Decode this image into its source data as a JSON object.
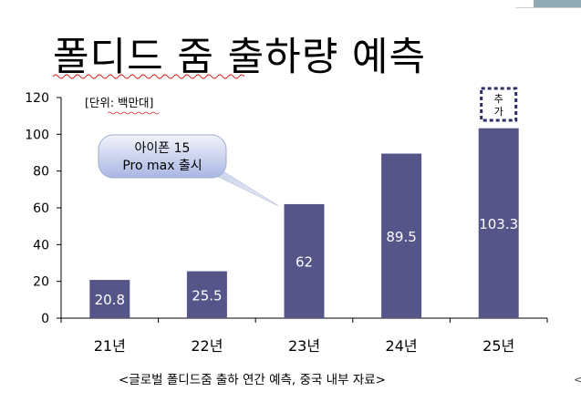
{
  "slide": {
    "title": "폴디드 줌 출하량 예측",
    "caption": "<글로벌 폴디드줌 출하 연간 예측, 중국 내부 자료>"
  },
  "chart_data": {
    "type": "bar",
    "categories": [
      "21년",
      "22년",
      "23년",
      "24년",
      "25년"
    ],
    "values": [
      20.8,
      25.5,
      62,
      89.5,
      103.3
    ],
    "value_labels": [
      "20.8",
      "25.5",
      "62",
      "89.5",
      "103.3"
    ],
    "ylim": [
      0,
      120
    ],
    "yticks": [
      0,
      20,
      40,
      60,
      80,
      100,
      120
    ],
    "unit_label": "[단위: 백만대]",
    "bar_color": "#55558a",
    "grid": false,
    "callout": {
      "line1": "아이폰 15",
      "line2": "Pro max 출시",
      "points_to": "23년"
    },
    "annotation": {
      "text_top": "추",
      "text_bottom": "가",
      "over": "25년"
    }
  }
}
